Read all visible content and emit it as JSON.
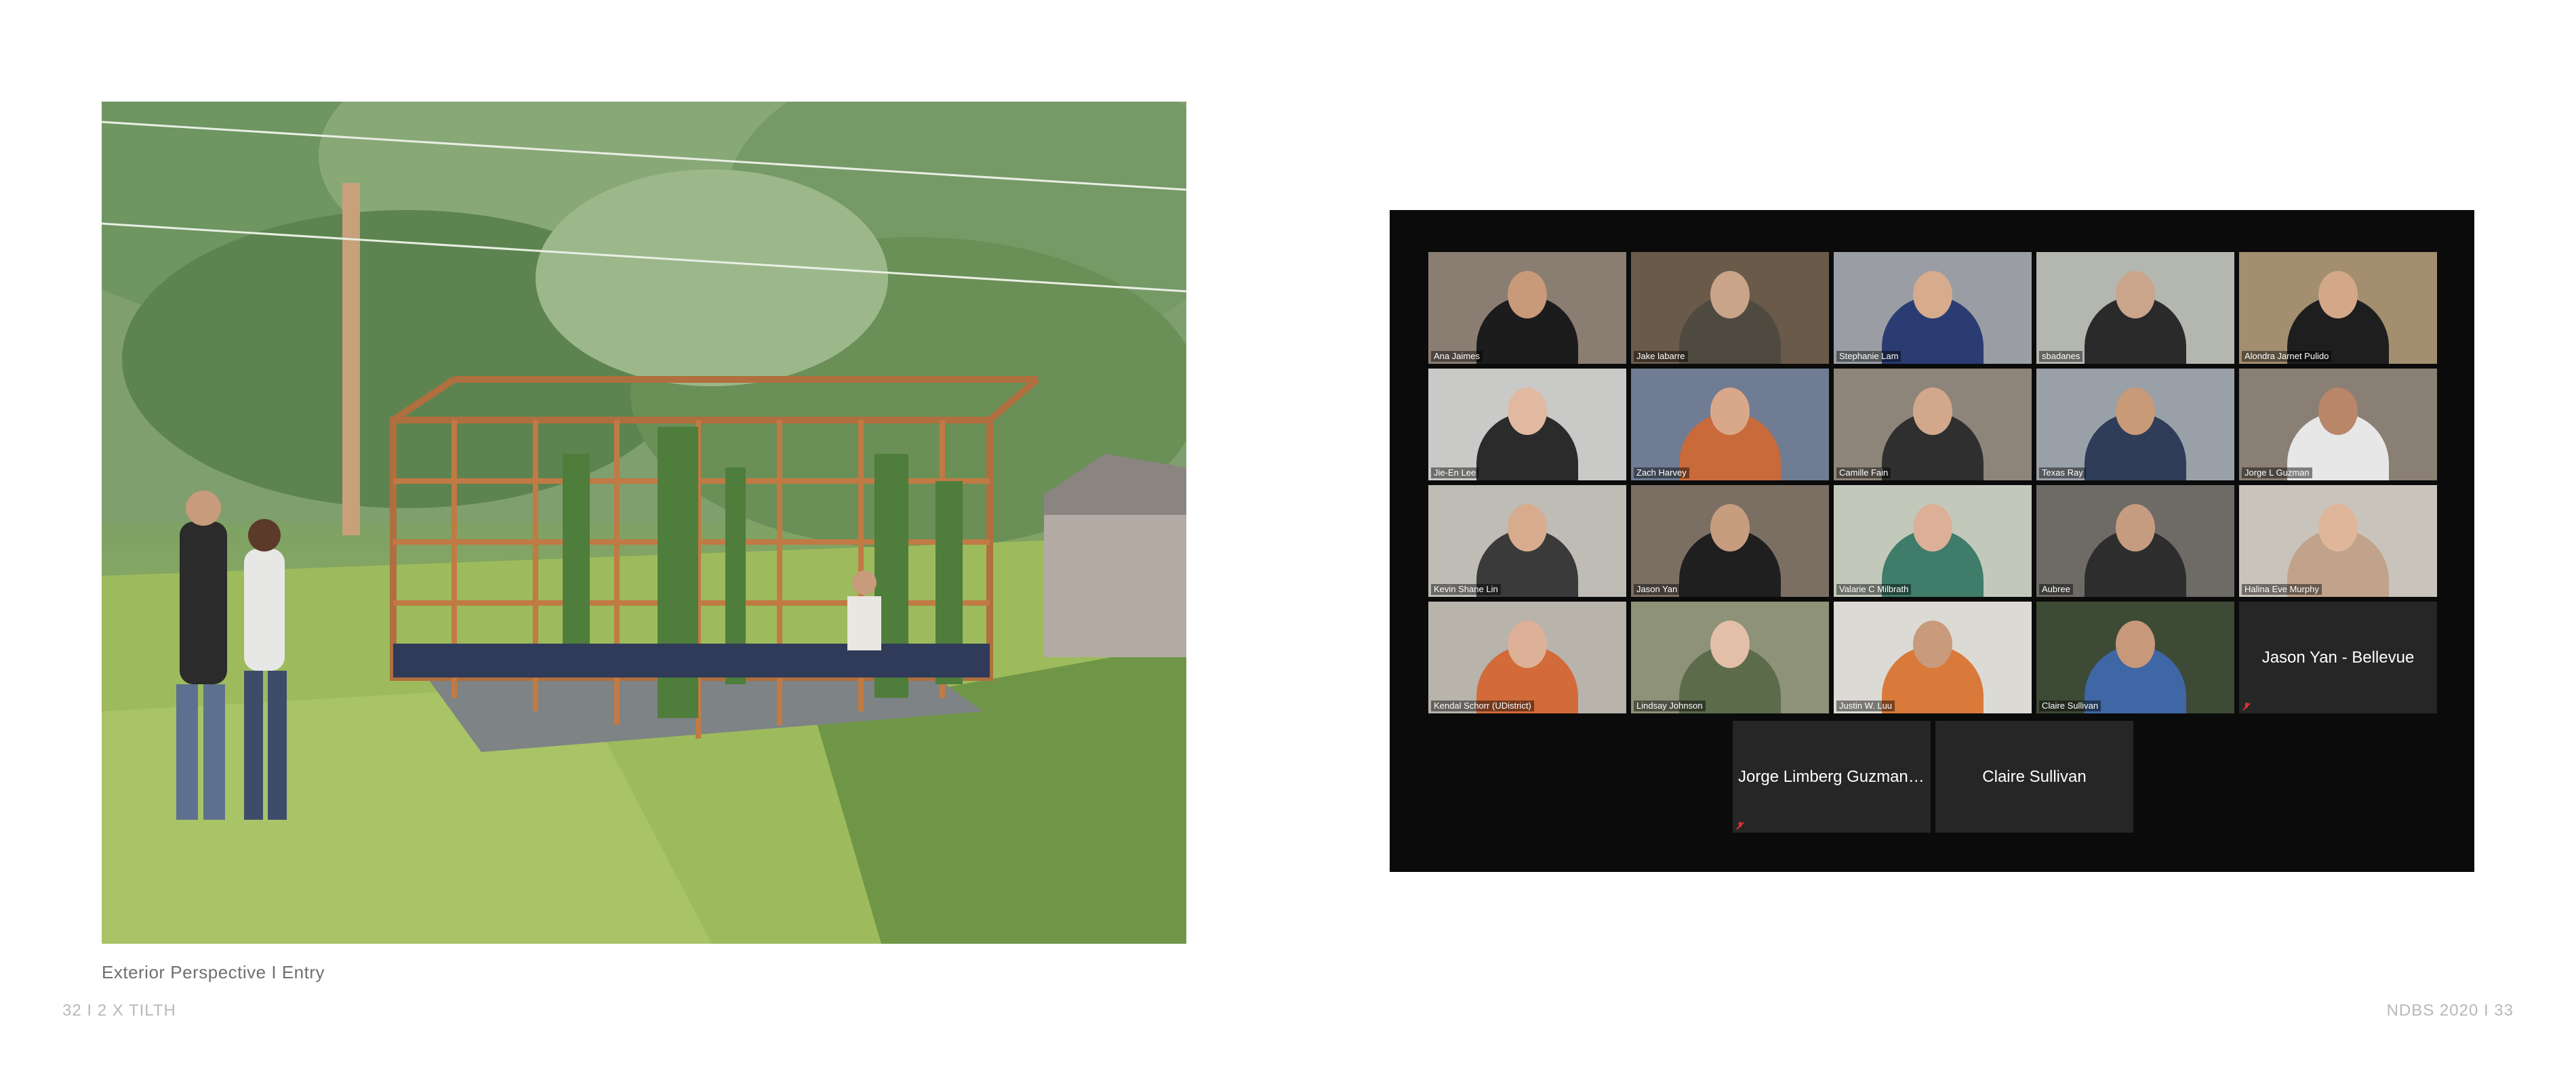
{
  "render": {
    "caption": "Exterior Perspective I Entry"
  },
  "folio": {
    "left": "32 I 2 X TILTH",
    "right": "NDBS 2020 I 33"
  },
  "zoom": {
    "grid": [
      {
        "name": "Ana Jaimes",
        "bg": "#8a7d72",
        "shirt": "#1c1c1c",
        "skin": "#c89a7a",
        "speaker": false
      },
      {
        "name": "Jake labarre",
        "bg": "#6a5a4a",
        "shirt": "#4f4a3f",
        "skin": "#c9a489",
        "speaker": true
      },
      {
        "name": "Stephanie Lam",
        "bg": "#9a9ea4",
        "shirt": "#2b3c72",
        "skin": "#d7ab8e",
        "speaker": false
      },
      {
        "name": "sbadanes",
        "bg": "#b3b7b0",
        "shirt": "#2a2a2a",
        "skin": "#caa58b",
        "speaker": false
      },
      {
        "name": "Alondra Jarnet Pulido",
        "bg": "#a38e70",
        "shirt": "#1e1e1e",
        "skin": "#d3a889",
        "speaker": false
      },
      {
        "name": "Jie-En Lee",
        "bg": "#c9c9c7",
        "shirt": "#2b2b2b",
        "skin": "#e0b9a0",
        "speaker": false
      },
      {
        "name": "Zach Harvey",
        "bg": "#6f7c93",
        "shirt": "#c96a3a",
        "skin": "#d9a88a",
        "speaker": false
      },
      {
        "name": "Camille Fain",
        "bg": "#8d8579",
        "shirt": "#2f2f2f",
        "skin": "#d2a88c",
        "speaker": false
      },
      {
        "name": "Texas Ray",
        "bg": "#9aa0a8",
        "shirt": "#2f3d58",
        "skin": "#c89a78",
        "speaker": false
      },
      {
        "name": "Jorge  L Guzman",
        "bg": "#8a7f74",
        "shirt": "#e7e7e7",
        "skin": "#b9866a",
        "speaker": false
      },
      {
        "name": "Kevin Shane Lin",
        "bg": "#bfbcb6",
        "shirt": "#3a3a3a",
        "skin": "#d7ab8e",
        "speaker": false
      },
      {
        "name": "Jason Yan",
        "bg": "#7b6e63",
        "shirt": "#1f1f1f",
        "skin": "#c79d7f",
        "speaker": false
      },
      {
        "name": "Valarie C Milbrath",
        "bg": "#c2c9bb",
        "shirt": "#3f7c6a",
        "skin": "#dcb097",
        "speaker": false
      },
      {
        "name": "Aubree",
        "bg": "#6e6a66",
        "shirt": "#2d2d2d",
        "skin": "#c59c7f",
        "speaker": false
      },
      {
        "name": "Halina Eve Murphy",
        "bg": "#c9c4bb",
        "shirt": "#c0a38a",
        "skin": "#e0b69b",
        "speaker": false
      },
      {
        "name": "Kendal Schorr (UDistrict)",
        "bg": "#b8b3ab",
        "shirt": "#d26a3a",
        "skin": "#dcb198",
        "speaker": false
      },
      {
        "name": "Lindsay Johnson",
        "bg": "#8d9279",
        "shirt": "#5c6b4a",
        "skin": "#e2bfa6",
        "speaker": false
      },
      {
        "name": "Justin W. Luu",
        "bg": "#dcdad4",
        "shirt": "#d9793a",
        "skin": "#c99a7c",
        "speaker": false
      },
      {
        "name": "Claire Sullivan",
        "bg": "#3d4a35",
        "shirt": "#3f67a6",
        "skin": "#c8987a",
        "speaker": false
      }
    ],
    "no_video_top": "Jason Yan - Bellevue",
    "no_video_bottom": [
      "Jorge Limberg Guzman-S...",
      "Claire Sullivan"
    ]
  }
}
